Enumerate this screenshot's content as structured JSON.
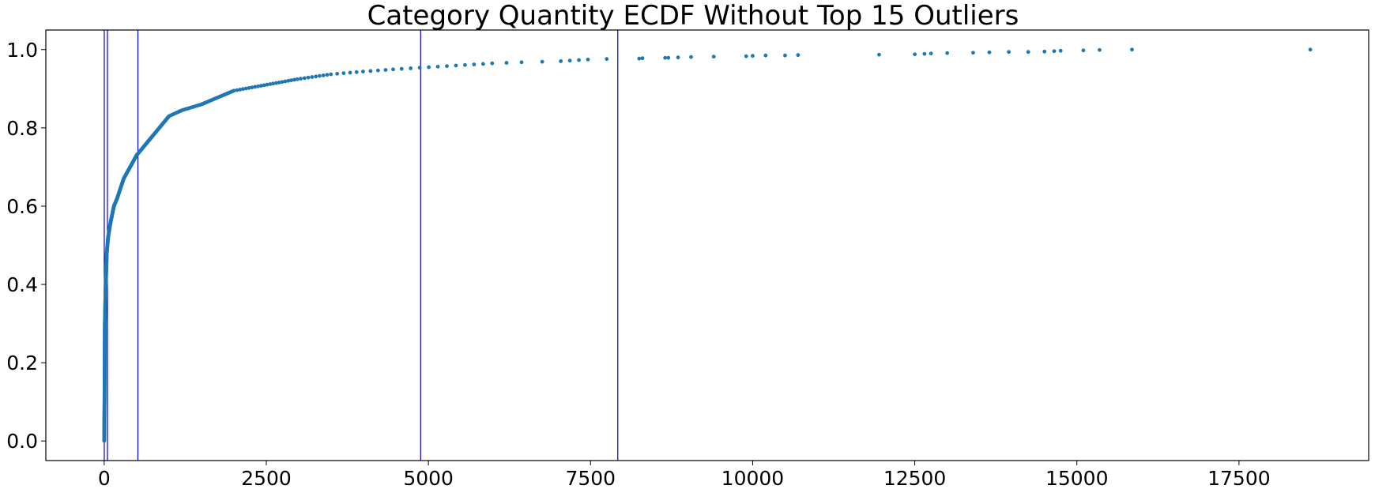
{
  "chart_data": {
    "type": "scatter",
    "title": "Category Quantity ECDF Without Top 15 Outliers",
    "xlabel": "",
    "ylabel": "",
    "xlim": [
      -900,
      19500
    ],
    "ylim": [
      -0.05,
      1.05
    ],
    "xticks": [
      0,
      2500,
      5000,
      7500,
      10000,
      12500,
      15000,
      17500
    ],
    "yticks": [
      0.0,
      0.2,
      0.4,
      0.6,
      0.8,
      1.0
    ],
    "grid": false,
    "legend": "none",
    "marker_color": "#1f77b4",
    "vline_color": "#0000cc",
    "vlines": [
      1,
      50,
      520,
      4880,
      7920
    ],
    "ecdf_knots": [
      [
        0,
        0.0
      ],
      [
        5,
        0.1
      ],
      [
        10,
        0.3
      ],
      [
        20,
        0.38
      ],
      [
        40,
        0.48
      ],
      [
        60,
        0.52
      ],
      [
        100,
        0.56
      ],
      [
        150,
        0.6
      ],
      [
        200,
        0.62
      ],
      [
        300,
        0.67
      ],
      [
        400,
        0.7
      ],
      [
        500,
        0.73
      ],
      [
        700,
        0.77
      ],
      [
        1000,
        0.83
      ],
      [
        1200,
        0.845
      ],
      [
        1500,
        0.86
      ],
      [
        2000,
        0.895
      ],
      [
        2500,
        0.91
      ],
      [
        3000,
        0.925
      ],
      [
        3500,
        0.937
      ],
      [
        4000,
        0.944
      ],
      [
        4500,
        0.95
      ],
      [
        5000,
        0.955
      ],
      [
        5500,
        0.96
      ],
      [
        6000,
        0.965
      ],
      [
        6500,
        0.968
      ],
      [
        7000,
        0.97
      ],
      [
        7500,
        0.975
      ],
      [
        8000,
        0.977
      ],
      [
        9000,
        0.981
      ],
      [
        10000,
        0.984
      ],
      [
        10700,
        0.986
      ],
      [
        12000,
        0.988
      ],
      [
        13000,
        0.99
      ],
      [
        14000,
        0.993
      ],
      [
        14800,
        0.996
      ],
      [
        15200,
        0.998
      ],
      [
        15800,
        0.999
      ],
      [
        18600,
        1.0
      ]
    ],
    "sparse_points": [
      [
        8250,
        0.977
      ],
      [
        8300,
        0.978
      ],
      [
        8650,
        0.979
      ],
      [
        8700,
        0.979
      ],
      [
        8850,
        0.98
      ],
      [
        9050,
        0.981
      ],
      [
        9400,
        0.982
      ],
      [
        9900,
        0.983
      ],
      [
        10000,
        0.984
      ],
      [
        10200,
        0.985
      ],
      [
        10500,
        0.985
      ],
      [
        10700,
        0.986
      ],
      [
        11950,
        0.987
      ],
      [
        12500,
        0.988
      ],
      [
        12650,
        0.989
      ],
      [
        12750,
        0.99
      ],
      [
        13000,
        0.991
      ],
      [
        13400,
        0.992
      ],
      [
        13650,
        0.993
      ],
      [
        13950,
        0.994
      ],
      [
        14250,
        0.994
      ],
      [
        14500,
        0.995
      ],
      [
        14650,
        0.996
      ],
      [
        14750,
        0.997
      ],
      [
        15100,
        0.998
      ],
      [
        15350,
        0.999
      ],
      [
        15850,
        1.0
      ],
      [
        18600,
        1.0
      ]
    ]
  }
}
